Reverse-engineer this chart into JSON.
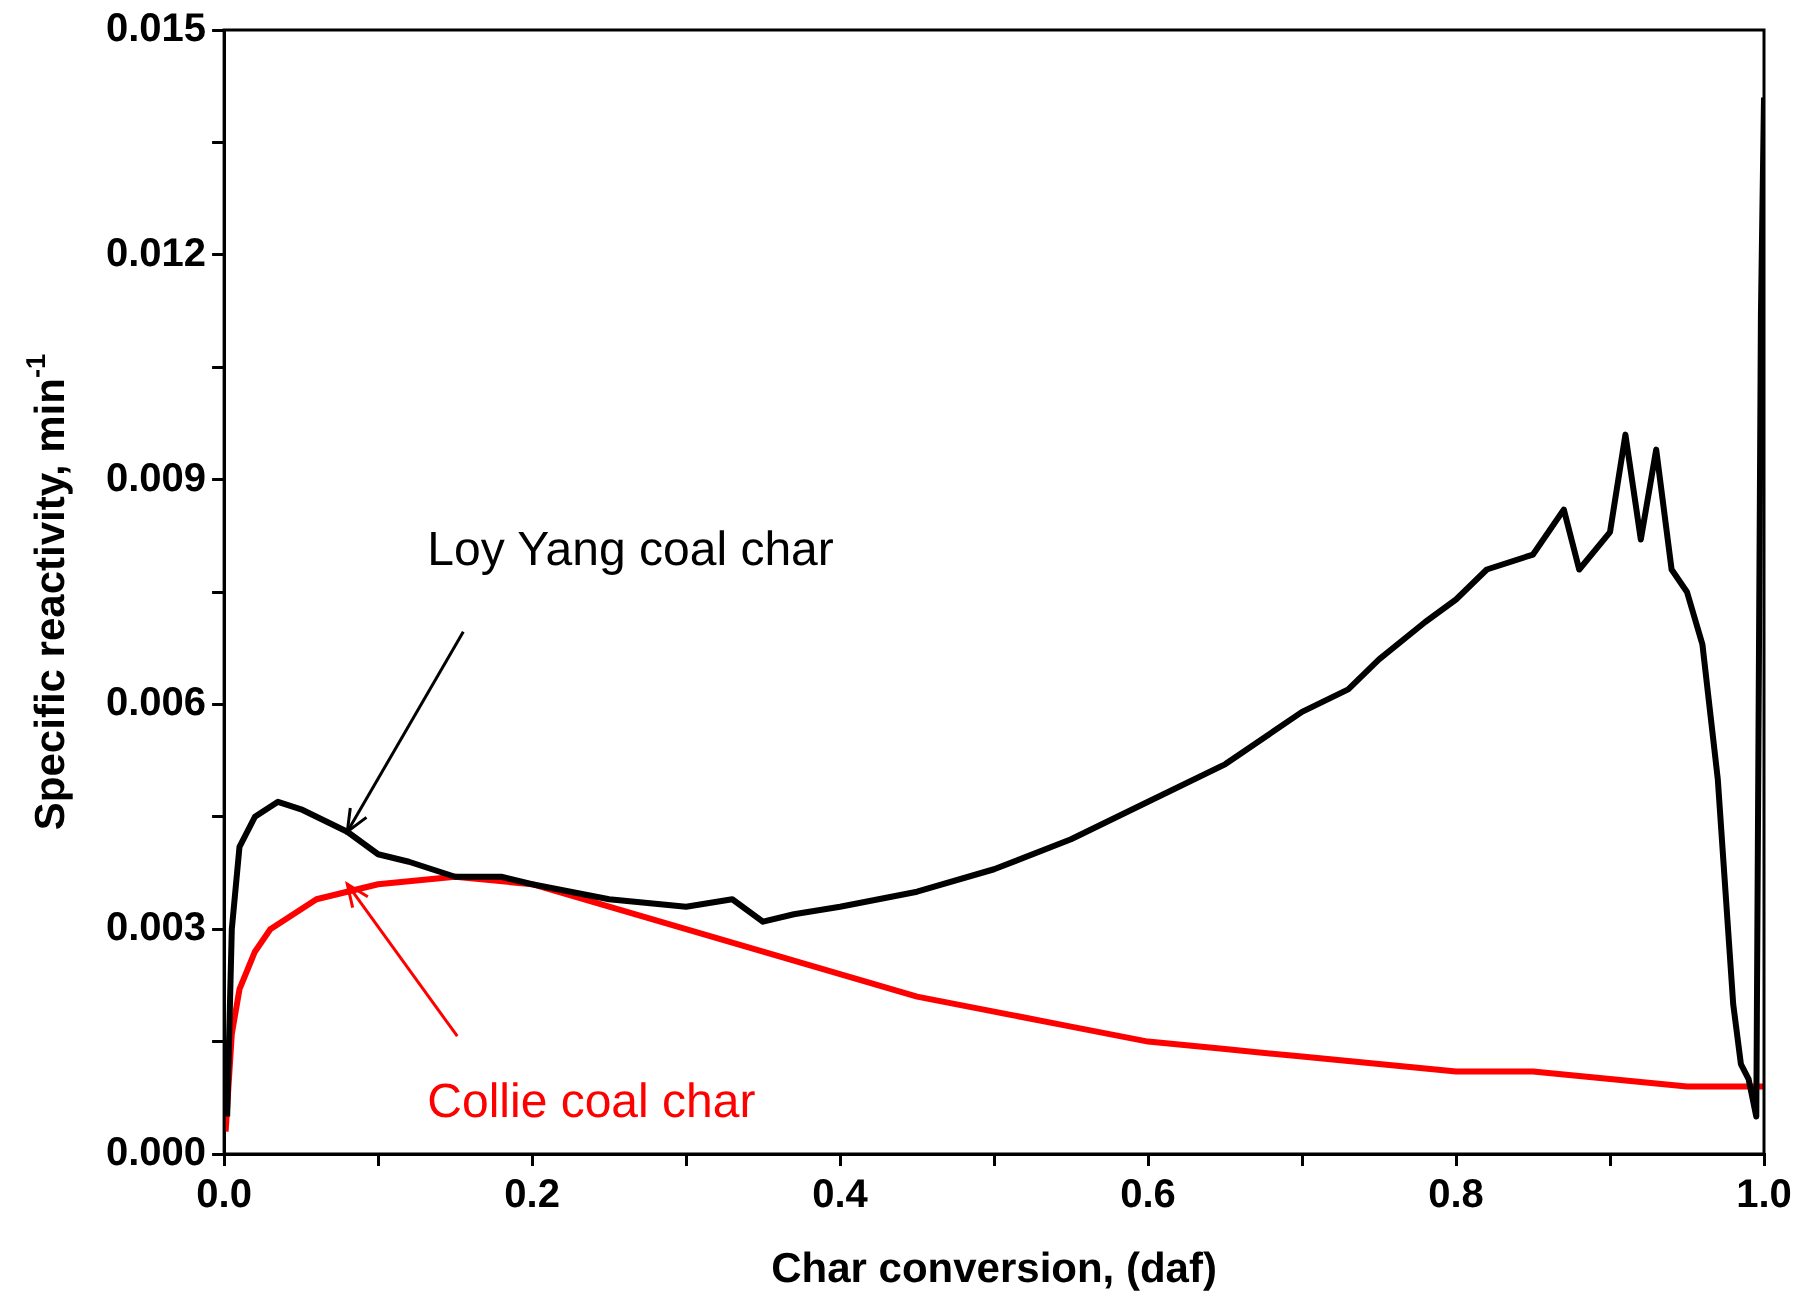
{
  "chart_data": {
    "type": "line",
    "xlabel": "Char conversion, (daf)",
    "ylabel": "Specific reactivity, min$^{-1}$",
    "xlim": [
      0,
      1
    ],
    "ylim": [
      0,
      0.015
    ],
    "xticks": [
      {
        "value": 0,
        "label": "0.0"
      },
      {
        "value": 0.1,
        "label": null
      },
      {
        "value": 0.2,
        "label": "0.2"
      },
      {
        "value": 0.3,
        "label": null
      },
      {
        "value": 0.4,
        "label": "0.4"
      },
      {
        "value": 0.5,
        "label": null
      },
      {
        "value": 0.6,
        "label": "0.6"
      },
      {
        "value": 0.7,
        "label": null
      },
      {
        "value": 0.8,
        "label": "0.8"
      },
      {
        "value": 0.9,
        "label": null
      },
      {
        "value": 1,
        "label": "1.0"
      }
    ],
    "yticks": [
      {
        "value": 0,
        "label": "0.000"
      },
      {
        "value": 0.0015,
        "label": null
      },
      {
        "value": 0.003,
        "label": "0.003"
      },
      {
        "value": 0.0045,
        "label": null
      },
      {
        "value": 0.006,
        "label": "0.006"
      },
      {
        "value": 0.0075,
        "label": null
      },
      {
        "value": 0.009,
        "label": "0.009"
      },
      {
        "value": 0.0105,
        "label": null
      },
      {
        "value": 0.012,
        "label": "0.012"
      },
      {
        "value": 0.0135,
        "label": null
      },
      {
        "value": 0.015,
        "label": "0.015"
      }
    ],
    "grid": false,
    "legend": false,
    "marker": "none",
    "line_style": "solid",
    "series": [
      {
        "color": "#000000",
        "x": [
          0.002,
          0.005,
          0.01,
          0.02,
          0.035,
          0.05,
          0.08,
          0.1,
          0.12,
          0.15,
          0.18,
          0.2,
          0.25,
          0.3,
          0.33,
          0.35,
          0.37,
          0.4,
          0.45,
          0.5,
          0.55,
          0.6,
          0.65,
          0.7,
          0.73,
          0.75,
          0.78,
          0.8,
          0.82,
          0.85,
          0.87,
          0.88,
          0.9,
          0.91,
          0.92,
          0.93,
          0.94,
          0.95,
          0.96,
          0.97,
          0.975,
          0.98,
          0.985,
          0.99,
          0.995,
          0.998,
          1.0
        ],
        "values": [
          0.0005,
          0.003,
          0.0041,
          0.0045,
          0.0047,
          0.0046,
          0.0043,
          0.004,
          0.0039,
          0.0037,
          0.0037,
          0.0036,
          0.0034,
          0.0033,
          0.0034,
          0.0031,
          0.0032,
          0.0033,
          0.0035,
          0.0038,
          0.0042,
          0.0047,
          0.0052,
          0.0059,
          0.0062,
          0.0066,
          0.0071,
          0.0074,
          0.0078,
          0.008,
          0.0086,
          0.0078,
          0.0083,
          0.0096,
          0.0082,
          0.0094,
          0.0078,
          0.0075,
          0.0068,
          0.005,
          0.0035,
          0.002,
          0.0012,
          0.001,
          0.0005,
          0.0112,
          0.0141
        ]
      },
      {
        "color": "#ff0000",
        "x": [
          0.001,
          0.005,
          0.01,
          0.02,
          0.03,
          0.06,
          0.1,
          0.15,
          0.2,
          0.25,
          0.3,
          0.35,
          0.4,
          0.45,
          0.5,
          0.55,
          0.6,
          0.65,
          0.7,
          0.75,
          0.8,
          0.85,
          0.9,
          0.95,
          0.98,
          1.0
        ],
        "values": [
          0.0003,
          0.0016,
          0.0022,
          0.0027,
          0.003,
          0.0034,
          0.0036,
          0.0037,
          0.0036,
          0.0033,
          0.003,
          0.0027,
          0.0024,
          0.0021,
          0.0019,
          0.0017,
          0.0015,
          0.0014,
          0.0013,
          0.0012,
          0.0011,
          0.0011,
          0.001,
          0.0009,
          0.0009,
          0.0009
        ]
      }
    ],
    "annotations": [
      {
        "text": "Loy Yang coal char",
        "x": 0.08,
        "y": 0.0043
      },
      {
        "text": "Collie coal char",
        "x": 0.08,
        "y": 0.0036
      }
    ]
  }
}
